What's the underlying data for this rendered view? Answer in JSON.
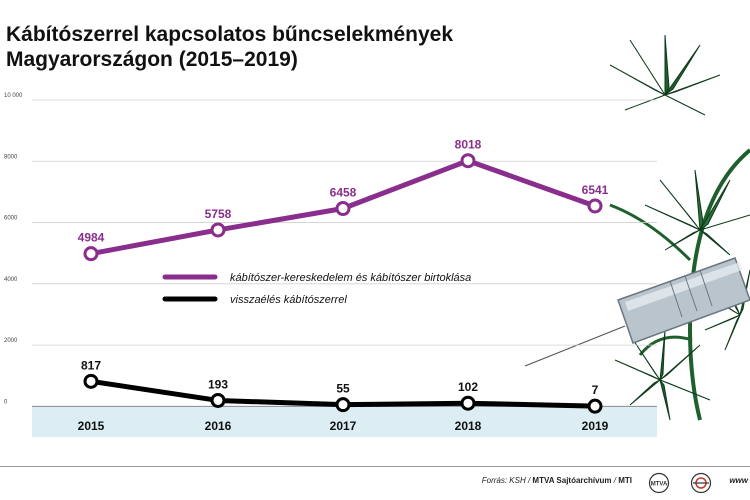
{
  "title": "Kábítószerrel kapcsolatos bűncselekmények Magyarországon (2015–2019)",
  "colors": {
    "trafficking": "#8a2e8d",
    "abuse": "#000000",
    "grid": "#d0d0d0",
    "band": "#dcedf3",
    "cannabis": "#1f5f2e"
  },
  "chart_data": {
    "type": "line",
    "categories": [
      "2015",
      "2016",
      "2017",
      "2018",
      "2019"
    ],
    "y_ticks": [
      "10 000",
      "8000",
      "6000",
      "4000",
      "2000",
      "0"
    ],
    "y_tick_values": [
      10000,
      8000,
      6000,
      4000,
      2000,
      0
    ],
    "ylim": [
      -1000,
      10000
    ],
    "grid": true,
    "legend_position": "center",
    "series": [
      {
        "name": "kábítószer-kereskedelem és kábítószer birtoklása",
        "color": "#8a2e8d",
        "values": [
          4984,
          5758,
          6458,
          8018,
          6541
        ],
        "labels": [
          "4984",
          "5758",
          "6458",
          "8018",
          "6541"
        ]
      },
      {
        "name": "visszaélés kábítószerrel",
        "color": "#000000",
        "values": [
          817,
          193,
          55,
          102,
          7
        ],
        "labels": [
          "817",
          "193",
          "55",
          "102",
          "7"
        ]
      }
    ]
  },
  "footer": {
    "source_prefix": "Forrás: KSH / ",
    "source_archive": "MTVA Sajtóarchívum",
    "source_sep": " / ",
    "source_mti": "MTI",
    "logo1": "MTVA",
    "logo2_icon": "mti-logo-icon",
    "cut_text": "www"
  }
}
